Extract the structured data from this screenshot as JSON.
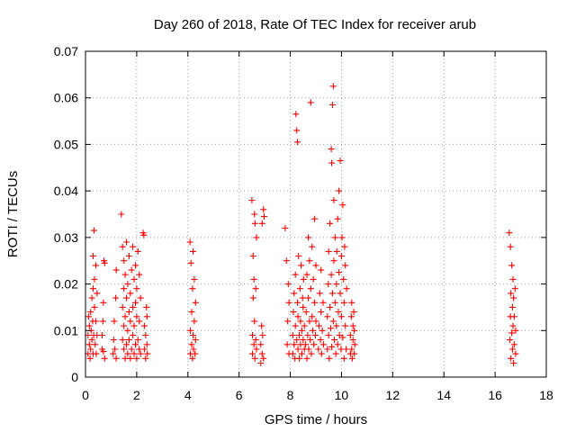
{
  "chart_data": {
    "type": "scatter",
    "title": "Day 260 of 2018, Rate Of TEC Index for receiver arub",
    "xlabel": "GPS time / hours",
    "ylabel": "ROTI / TECUs",
    "xlim": [
      0,
      18
    ],
    "ylim": [
      0,
      0.07
    ],
    "x_ticks": [
      0,
      2,
      4,
      6,
      8,
      10,
      12,
      14,
      16,
      18
    ],
    "x_tick_labels": [
      "0",
      "2",
      "4",
      "6",
      "8",
      "10",
      "12",
      "14",
      "16",
      "18"
    ],
    "y_ticks": [
      0,
      0.01,
      0.02,
      0.03,
      0.04,
      0.05,
      0.06,
      0.07
    ],
    "y_tick_labels": [
      "0",
      "0.01",
      "0.02",
      "0.03",
      "0.04",
      "0.05",
      "0.06",
      "0.07"
    ],
    "grid": true,
    "marker": "+",
    "marker_color": "#ff0000",
    "series": [
      {
        "points": [
          [
            0.1,
            0.005
          ],
          [
            0.1,
            0.009
          ],
          [
            0.12,
            0.013
          ],
          [
            0.15,
            0.007
          ],
          [
            0.15,
            0.011
          ],
          [
            0.18,
            0.004
          ],
          [
            0.2,
            0.006
          ],
          [
            0.2,
            0.014
          ],
          [
            0.22,
            0.01
          ],
          [
            0.25,
            0.008
          ],
          [
            0.25,
            0.017
          ],
          [
            0.28,
            0.012
          ],
          [
            0.3,
            0.005
          ],
          [
            0.3,
            0.019
          ],
          [
            0.3,
            0.026
          ],
          [
            0.32,
            0.009
          ],
          [
            0.33,
            0.0315
          ],
          [
            0.35,
            0.015
          ],
          [
            0.35,
            0.021
          ],
          [
            0.38,
            0.007
          ],
          [
            0.4,
            0.012
          ],
          [
            0.4,
            0.024
          ],
          [
            0.42,
            0.005
          ],
          [
            0.45,
            0.009
          ],
          [
            0.45,
            0.018
          ],
          [
            0.65,
            0.006
          ],
          [
            0.65,
            0.009
          ],
          [
            0.68,
            0.012
          ],
          [
            0.7,
            0.0055
          ],
          [
            0.7,
            0.016
          ],
          [
            0.72,
            0.025
          ],
          [
            0.75,
            0.004
          ],
          [
            0.75,
            0.0245
          ],
          [
            1.08,
            0.005
          ],
          [
            1.1,
            0.008
          ],
          [
            1.12,
            0.012
          ],
          [
            1.15,
            0.006
          ],
          [
            1.18,
            0.017
          ],
          [
            1.2,
            0.004
          ],
          [
            1.2,
            0.023
          ],
          [
            1.4,
            0.035
          ],
          [
            1.45,
            0.008
          ],
          [
            1.45,
            0.015
          ],
          [
            1.45,
            0.028
          ],
          [
            1.5,
            0.006
          ],
          [
            1.5,
            0.011
          ],
          [
            1.5,
            0.019
          ],
          [
            1.5,
            0.025
          ],
          [
            1.55,
            0.004
          ],
          [
            1.55,
            0.013
          ],
          [
            1.55,
            0.022
          ],
          [
            1.6,
            0.007
          ],
          [
            1.6,
            0.017
          ],
          [
            1.6,
            0.029
          ],
          [
            1.65,
            0.005
          ],
          [
            1.65,
            0.01
          ],
          [
            1.65,
            0.02
          ],
          [
            1.7,
            0.008
          ],
          [
            1.7,
            0.014
          ],
          [
            1.7,
            0.026
          ],
          [
            1.75,
            0.004
          ],
          [
            1.75,
            0.012
          ],
          [
            1.75,
            0.018
          ],
          [
            1.8,
            0.006
          ],
          [
            1.8,
            0.023
          ],
          [
            1.85,
            0.009
          ],
          [
            1.85,
            0.015
          ],
          [
            1.85,
            0.028
          ],
          [
            1.9,
            0.005
          ],
          [
            1.9,
            0.011
          ],
          [
            1.9,
            0.021
          ],
          [
            1.95,
            0.007
          ],
          [
            1.95,
            0.016
          ],
          [
            1.95,
            0.024
          ],
          [
            2.0,
            0.004
          ],
          [
            2.0,
            0.013
          ],
          [
            2.0,
            0.019
          ],
          [
            2.05,
            0.008
          ],
          [
            2.05,
            0.027
          ],
          [
            2.1,
            0.006
          ],
          [
            2.1,
            0.012
          ],
          [
            2.1,
            0.022
          ],
          [
            2.15,
            0.005
          ],
          [
            2.15,
            0.017
          ],
          [
            2.25,
            0.031
          ],
          [
            2.28,
            0.0305
          ],
          [
            2.3,
            0.006
          ],
          [
            2.3,
            0.011
          ],
          [
            2.35,
            0.004
          ],
          [
            2.35,
            0.009
          ],
          [
            2.38,
            0.015
          ],
          [
            2.4,
            0.007
          ],
          [
            2.4,
            0.013
          ],
          [
            2.42,
            0.005
          ],
          [
            4.08,
            0.029
          ],
          [
            4.1,
            0.005
          ],
          [
            4.1,
            0.01
          ],
          [
            4.12,
            0.0245
          ],
          [
            4.15,
            0.007
          ],
          [
            4.15,
            0.014
          ],
          [
            4.18,
            0.004
          ],
          [
            4.18,
            0.019
          ],
          [
            4.2,
            0.009
          ],
          [
            4.2,
            0.027
          ],
          [
            4.22,
            0.006
          ],
          [
            4.25,
            0.012
          ],
          [
            4.25,
            0.021
          ],
          [
            4.28,
            0.005
          ],
          [
            4.3,
            0.008
          ],
          [
            4.3,
            0.016
          ],
          [
            6.5,
            0.038
          ],
          [
            6.52,
            0.005
          ],
          [
            6.52,
            0.009
          ],
          [
            6.55,
            0.017
          ],
          [
            6.55,
            0.026
          ],
          [
            6.58,
            0.007
          ],
          [
            6.58,
            0.021
          ],
          [
            6.6,
            0.035
          ],
          [
            6.6,
            0.012
          ],
          [
            6.62,
            0.004
          ],
          [
            6.62,
            0.033
          ],
          [
            6.65,
            0.008
          ],
          [
            6.65,
            0.019
          ],
          [
            6.68,
            0.006
          ],
          [
            6.68,
            0.03
          ],
          [
            6.85,
            0.003
          ],
          [
            6.85,
            0.007
          ],
          [
            6.88,
            0.011
          ],
          [
            6.9,
            0.005
          ],
          [
            6.9,
            0.033
          ],
          [
            6.92,
            0.009
          ],
          [
            6.95,
            0.036
          ],
          [
            6.95,
            0.004
          ],
          [
            6.98,
            0.0345
          ],
          [
            7.8,
            0.032
          ],
          [
            7.85,
            0.025
          ],
          [
            7.88,
            0.007
          ],
          [
            7.9,
            0.012
          ],
          [
            7.92,
            0.02
          ],
          [
            7.95,
            0.005
          ],
          [
            7.95,
            0.016
          ],
          [
            8.1,
            0.005
          ],
          [
            8.1,
            0.009
          ],
          [
            8.12,
            0.014
          ],
          [
            8.15,
            0.007
          ],
          [
            8.15,
            0.018
          ],
          [
            8.18,
            0.004
          ],
          [
            8.2,
            0.011
          ],
          [
            8.2,
            0.022
          ],
          [
            8.22,
            0.0565
          ],
          [
            8.25,
            0.053
          ],
          [
            8.25,
            0.008
          ],
          [
            8.28,
            0.0505
          ],
          [
            8.28,
            0.016
          ],
          [
            8.3,
            0.006
          ],
          [
            8.3,
            0.013
          ],
          [
            8.32,
            0.026
          ],
          [
            8.35,
            0.009
          ],
          [
            8.35,
            0.004
          ],
          [
            8.38,
            0.019
          ],
          [
            8.4,
            0.007
          ],
          [
            8.4,
            0.012
          ],
          [
            8.42,
            0.024
          ],
          [
            8.45,
            0.005
          ],
          [
            8.45,
            0.01
          ],
          [
            8.48,
            0.017
          ],
          [
            8.5,
            0.008
          ],
          [
            8.5,
            0.015
          ],
          [
            8.52,
            0.021
          ],
          [
            8.55,
            0.006
          ],
          [
            8.55,
            0.011
          ],
          [
            8.6,
            0.007
          ],
          [
            8.62,
            0.014
          ],
          [
            8.65,
            0.004
          ],
          [
            8.65,
            0.022
          ],
          [
            8.68,
            0.009
          ],
          [
            8.7,
            0.017
          ],
          [
            8.7,
            0.03
          ],
          [
            8.72,
            0.006
          ],
          [
            8.75,
            0.012
          ],
          [
            8.75,
            0.025
          ],
          [
            8.78,
            0.008
          ],
          [
            8.8,
            0.019
          ],
          [
            8.8,
            0.059
          ],
          [
            8.82,
            0.005
          ],
          [
            8.85,
            0.013
          ],
          [
            8.85,
            0.028
          ],
          [
            8.88,
            0.01
          ],
          [
            8.9,
            0.021
          ],
          [
            8.92,
            0.007
          ],
          [
            8.95,
            0.016
          ],
          [
            8.95,
            0.034
          ],
          [
            8.98,
            0.009
          ],
          [
            9.0,
            0.024
          ],
          [
            9.0,
            0.012
          ],
          [
            9.1,
            0.006
          ],
          [
            9.12,
            0.011
          ],
          [
            9.15,
            0.018
          ],
          [
            9.18,
            0.008
          ],
          [
            9.2,
            0.014
          ],
          [
            9.2,
            0.023
          ],
          [
            9.22,
            0.005
          ],
          [
            9.25,
            0.01
          ],
          [
            9.28,
            0.016
          ],
          [
            9.3,
            0.007
          ],
          [
            9.45,
            0.006
          ],
          [
            9.45,
            0.013
          ],
          [
            9.48,
            0.02
          ],
          [
            9.5,
            0.009
          ],
          [
            9.5,
            0.027
          ],
          [
            9.52,
            0.004
          ],
          [
            9.55,
            0.015
          ],
          [
            9.55,
            0.033
          ],
          [
            9.58,
            0.0105
          ],
          [
            9.6,
            0.049
          ],
          [
            9.6,
            0.022
          ],
          [
            9.62,
            0.0065
          ],
          [
            9.62,
            0.046
          ],
          [
            9.65,
            0.0585
          ],
          [
            9.65,
            0.018
          ],
          [
            9.68,
            0.0625
          ],
          [
            9.68,
            0.012
          ],
          [
            9.7,
            0.025
          ],
          [
            9.7,
            0.038
          ],
          [
            9.72,
            0.008
          ],
          [
            9.75,
            0.016
          ],
          [
            9.75,
            0.03
          ],
          [
            9.78,
            0.005
          ],
          [
            9.8,
            0.02
          ],
          [
            9.8,
            0.011
          ],
          [
            9.82,
            0.027
          ],
          [
            9.85,
            0.007
          ],
          [
            9.85,
            0.034
          ],
          [
            9.88,
            0.014
          ],
          [
            9.9,
            0.0225
          ],
          [
            9.9,
            0.04
          ],
          [
            9.92,
            0.009
          ],
          [
            9.95,
            0.018
          ],
          [
            9.95,
            0.0465
          ],
          [
            9.98,
            0.006
          ],
          [
            10.0,
            0.026
          ],
          [
            10.0,
            0.013
          ],
          [
            10.02,
            0.03
          ],
          [
            10.05,
            0.0085
          ],
          [
            10.05,
            0.037
          ],
          [
            10.08,
            0.021
          ],
          [
            10.1,
            0.004
          ],
          [
            10.1,
            0.016
          ],
          [
            10.12,
            0.028
          ],
          [
            10.15,
            0.011
          ],
          [
            10.15,
            0.024
          ],
          [
            10.18,
            0.006
          ],
          [
            10.2,
            0.019
          ],
          [
            10.35,
            0.005
          ],
          [
            10.35,
            0.009
          ],
          [
            10.38,
            0.013
          ],
          [
            10.4,
            0.006
          ],
          [
            10.4,
            0.016
          ],
          [
            10.42,
            0.004
          ],
          [
            10.45,
            0.011
          ],
          [
            10.45,
            0.008
          ],
          [
            10.48,
            0.014
          ],
          [
            10.5,
            0.005
          ],
          [
            10.5,
            0.01
          ],
          [
            10.52,
            0.007
          ],
          [
            16.55,
            0.031
          ],
          [
            16.58,
            0.008
          ],
          [
            16.6,
            0.013
          ],
          [
            16.6,
            0.028
          ],
          [
            16.62,
            0.004
          ],
          [
            16.62,
            0.018
          ],
          [
            16.65,
            0.0095
          ],
          [
            16.65,
            0.024
          ],
          [
            16.68,
            0.006
          ],
          [
            16.68,
            0.015
          ],
          [
            16.7,
            0.011
          ],
          [
            16.7,
            0.021
          ],
          [
            16.72,
            0.003
          ],
          [
            16.72,
            0.017
          ],
          [
            16.75,
            0.007
          ],
          [
            16.75,
            0.013
          ],
          [
            16.78,
            0.019
          ],
          [
            16.8,
            0.005
          ],
          [
            16.8,
            0.01
          ]
        ]
      }
    ]
  }
}
